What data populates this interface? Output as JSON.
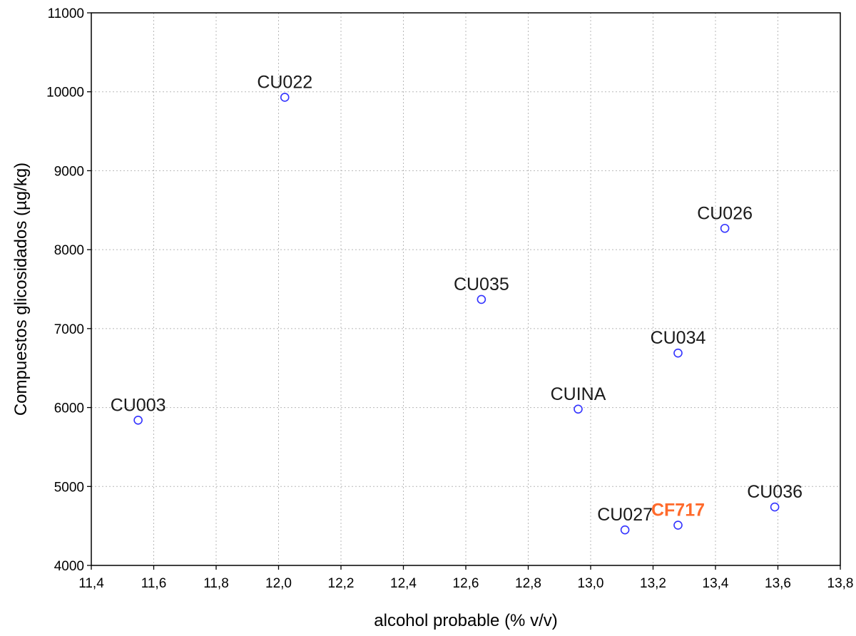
{
  "chart_data": {
    "type": "scatter",
    "xlabel": "alcohol probable (% v/v)",
    "ylabel": "Compuestos glicosidados (µg/kg)",
    "xlim": [
      11.4,
      13.8
    ],
    "ylim": [
      4000,
      11000
    ],
    "x_ticks": [
      11.4,
      11.6,
      11.8,
      12.0,
      12.2,
      12.4,
      12.6,
      12.8,
      13.0,
      13.2,
      13.4,
      13.6,
      13.8
    ],
    "x_tick_labels": [
      "11,4",
      "11,6",
      "11,8",
      "12,0",
      "12,2",
      "12,4",
      "12,6",
      "12,8",
      "13,0",
      "13,2",
      "13,4",
      "13,6",
      "13,8"
    ],
    "y_ticks": [
      4000,
      5000,
      6000,
      7000,
      8000,
      9000,
      10000,
      11000
    ],
    "y_tick_labels": [
      "4000",
      "5000",
      "6000",
      "7000",
      "8000",
      "9000",
      "10000",
      "11000"
    ],
    "grid": true,
    "marker_color": "#3333ff",
    "highlight_color": "#ff6a2b",
    "points": [
      {
        "label": "CU022",
        "x": 12.02,
        "y": 9930
      },
      {
        "label": "CU026",
        "x": 13.43,
        "y": 8270
      },
      {
        "label": "CU035",
        "x": 12.65,
        "y": 7370
      },
      {
        "label": "CU034",
        "x": 13.28,
        "y": 6690
      },
      {
        "label": "CUINA",
        "x": 12.96,
        "y": 5980
      },
      {
        "label": "CU003",
        "x": 11.55,
        "y": 5840
      },
      {
        "label": "CU036",
        "x": 13.59,
        "y": 4740
      },
      {
        "label": "CF717",
        "x": 13.28,
        "y": 4510,
        "highlight": true
      },
      {
        "label": "CU027",
        "x": 13.11,
        "y": 4450
      }
    ]
  }
}
